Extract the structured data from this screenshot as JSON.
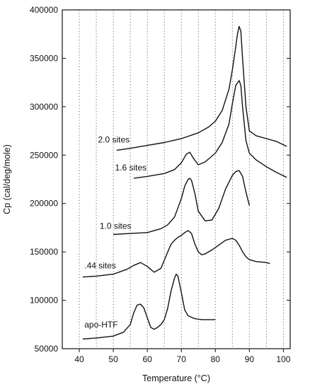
{
  "chart_data": {
    "type": "line",
    "xlabel": "Temperature (°C)",
    "ylabel": "Cp (cal/deg/mole)",
    "xlim": [
      35,
      102
    ],
    "ylim": [
      50000,
      400000
    ],
    "xticks": [
      40,
      50,
      60,
      70,
      80,
      90,
      100
    ],
    "yticks": [
      50000,
      100000,
      150000,
      200000,
      250000,
      300000,
      350000,
      400000
    ],
    "ytick_labels": [
      "50000",
      "100000",
      "150000",
      "200000",
      "250000",
      "300000",
      "350000",
      "400000"
    ],
    "xgrid": [
      40,
      45,
      50,
      55,
      60,
      65,
      70,
      75,
      80,
      85,
      90,
      95,
      100
    ],
    "grid": "vertical dotted",
    "series": [
      {
        "name": "2.0 sites",
        "x": [
          51,
          55,
          60,
          65,
          70,
          75,
          78,
          80,
          82,
          84,
          85,
          86,
          86.5,
          87,
          87.5,
          88,
          89,
          90,
          92,
          95,
          98,
          101
        ],
        "y": [
          255000,
          257000,
          260000,
          263000,
          267000,
          273000,
          279000,
          285000,
          296000,
          318000,
          338000,
          362000,
          375000,
          383000,
          378000,
          350000,
          300000,
          275000,
          270000,
          267000,
          264000,
          259000
        ]
      },
      {
        "name": "1.6 sites",
        "x": [
          56,
          60,
          65,
          68,
          70,
          71.5,
          72.5,
          73.5,
          75,
          77,
          80,
          82,
          84,
          85,
          86,
          87,
          87.5,
          88,
          89,
          90,
          92,
          95,
          98,
          101
        ],
        "y": [
          226000,
          228000,
          231000,
          235000,
          242000,
          251000,
          253000,
          247000,
          240000,
          243000,
          252000,
          263000,
          282000,
          303000,
          322000,
          327000,
          322000,
          300000,
          265000,
          252000,
          245000,
          238000,
          232000,
          227000
        ]
      },
      {
        "name": "1.0 sites",
        "x": [
          50,
          55,
          60,
          64,
          66,
          68,
          70,
          71,
          72,
          72.5,
          73,
          74,
          75,
          77,
          79,
          81,
          83,
          85,
          86,
          87,
          88,
          89,
          90
        ],
        "y": [
          168000,
          169000,
          170000,
          174000,
          178000,
          186000,
          205000,
          218000,
          225000,
          226000,
          224000,
          210000,
          192000,
          182000,
          183000,
          195000,
          215000,
          229000,
          233000,
          234000,
          228000,
          212000,
          198000
        ]
      },
      {
        "name": ".44 sites",
        "x": [
          41,
          45,
          50,
          54,
          56,
          58,
          60,
          62,
          64,
          66,
          67,
          68,
          69,
          70,
          71,
          72,
          73,
          74,
          75,
          76,
          77,
          79,
          81,
          83,
          85,
          86,
          87,
          88,
          89,
          90,
          92,
          95,
          96
        ],
        "y": [
          124000,
          125000,
          127000,
          132000,
          136000,
          139000,
          135000,
          129000,
          133000,
          150000,
          158000,
          162000,
          165000,
          167000,
          170000,
          172000,
          169000,
          158000,
          150000,
          147000,
          148000,
          152000,
          157000,
          162000,
          164000,
          162000,
          157000,
          150000,
          145000,
          142000,
          140000,
          139000,
          138000
        ]
      },
      {
        "name": "apo-HTF",
        "x": [
          41,
          45,
          50,
          53,
          55,
          56,
          57,
          58,
          59,
          60,
          61,
          62,
          63,
          64,
          65,
          66,
          67,
          68,
          68.5,
          69,
          70,
          71,
          72,
          74,
          76,
          78,
          80
        ],
        "y": [
          60000,
          61000,
          63000,
          67000,
          75000,
          87000,
          95000,
          96000,
          92000,
          82000,
          72000,
          70000,
          72000,
          75000,
          80000,
          92000,
          110000,
          123000,
          127000,
          125000,
          108000,
          90000,
          84000,
          81000,
          80000,
          80000,
          80000
        ]
      }
    ],
    "annotations": [
      {
        "text": "2.0 sites",
        "x": 45.5,
        "y": 263000
      },
      {
        "text": "1.6 sites",
        "x": 50.5,
        "y": 234000
      },
      {
        "text": "1.0 sites",
        "x": 46,
        "y": 174000
      },
      {
        "text": ".44 sites",
        "x": 41.5,
        "y": 133000
      },
      {
        "text": "apo-HTF",
        "x": 41.5,
        "y": 72000
      }
    ]
  }
}
